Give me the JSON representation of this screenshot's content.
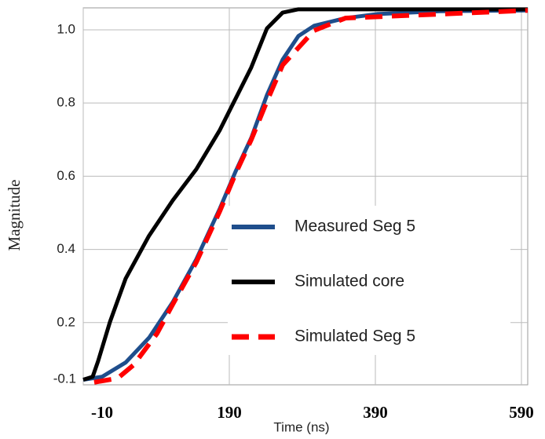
{
  "chart_data": {
    "type": "line",
    "xlabel": "Time (ns)",
    "ylabel": "Magnitude",
    "y_axis_stray_label": "-0.1",
    "xlim": [
      -10,
      598.6
    ],
    "ylim": [
      0.03,
      1.06
    ],
    "xticks": [
      -10,
      190,
      390,
      590
    ],
    "yticks": [
      {
        "value": 0.2,
        "label": "0.2"
      },
      {
        "value": 0.4,
        "label": "0.4"
      },
      {
        "value": 0.6,
        "label": "0.6"
      },
      {
        "value": 0.8,
        "label": "0.8"
      },
      {
        "value": 1.0,
        "label": "1.0"
      }
    ],
    "grid": true,
    "legend": "lower right",
    "series": [
      {
        "name": "Measured Seg 5",
        "color": "#1f4e8c",
        "dash": false,
        "x": [
          -10,
          15.8,
          48.1,
          80.3,
          112.6,
          144.8,
          177.1,
          198.6,
          220.1,
          241.6,
          263.1,
          284.6,
          306.1,
          349.1,
          392.2,
          478.2,
          598.6
        ],
        "values": [
          0.044,
          0.052,
          0.091,
          0.159,
          0.256,
          0.373,
          0.512,
          0.613,
          0.705,
          0.822,
          0.919,
          0.983,
          1.011,
          1.032,
          1.043,
          1.051,
          1.053
        ]
      },
      {
        "name": "Simulated core",
        "color": "#000000",
        "dash": false,
        "x": [
          -10,
          2.9,
          10.4,
          26.6,
          48,
          80,
          112.6,
          144.8,
          177,
          198.6,
          220,
          241.6,
          263,
          284.6,
          328,
          598.6
        ],
        "values": [
          0.044,
          0.052,
          0.095,
          0.202,
          0.32,
          0.437,
          0.534,
          0.619,
          0.726,
          0.812,
          0.897,
          1.004,
          1.047,
          1.056,
          1.056,
          1.056
        ]
      },
      {
        "name": "Simulated Seg 5",
        "color": "#ff0000",
        "dash": true,
        "x": [
          5,
          37.3,
          58.8,
          91,
          112.6,
          144.8,
          177.1,
          198.6,
          220.1,
          241.6,
          263.1,
          306.1,
          349.1,
          598.6
        ],
        "values": [
          0.037,
          0.048,
          0.084,
          0.17,
          0.25,
          0.365,
          0.505,
          0.607,
          0.7,
          0.805,
          0.904,
          0.998,
          1.032,
          1.053
        ]
      }
    ]
  }
}
